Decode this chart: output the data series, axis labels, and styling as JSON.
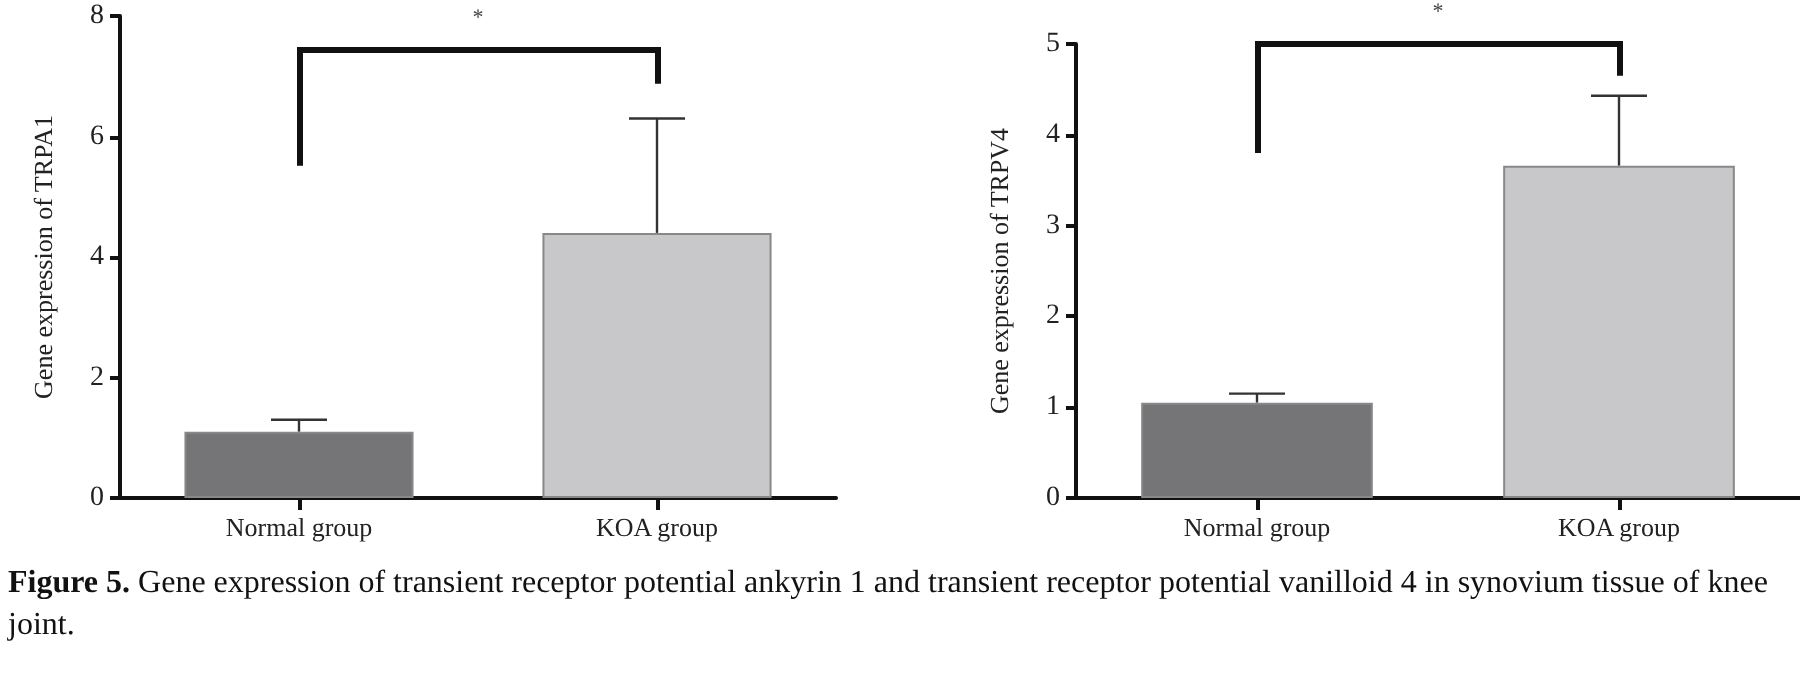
{
  "chart_data": [
    {
      "type": "bar",
      "categories": [
        "Normal group",
        "KOA group"
      ],
      "ylabel": "Gene expression of TRPA1",
      "colors": [
        "#757578",
        "#c8c8ca"
      ],
      "values": [
        1.1,
        4.4
      ],
      "errors": [
        [
          1.1,
          1.3
        ],
        [
          4.4,
          6.3
        ]
      ],
      "ylim": [
        0,
        8
      ],
      "yticks": [
        0,
        2,
        4,
        6,
        8
      ],
      "grid": false,
      "annotations": [
        "*",
        "Figure 5. Gene expression of transient receptor potential ankyrin 1 and transient receptor potential vanilloid 4 in synovium tissue of knee joint."
      ]
    },
    {
      "type": "bar",
      "categories": [
        "Normal group",
        "KOA group"
      ],
      "ylabel": "Gene expression of TRPV4",
      "colors": [
        "#757578",
        "#c8c8ca"
      ],
      "values": [
        1.05,
        3.66
      ],
      "errors": [
        [
          1.05,
          1.15
        ],
        [
          3.66,
          4.43
        ]
      ],
      "ylim": [
        0,
        5
      ],
      "yticks": [
        0,
        1,
        2,
        3,
        4,
        5
      ],
      "grid": false,
      "annotations": [
        "*"
      ]
    }
  ]
}
